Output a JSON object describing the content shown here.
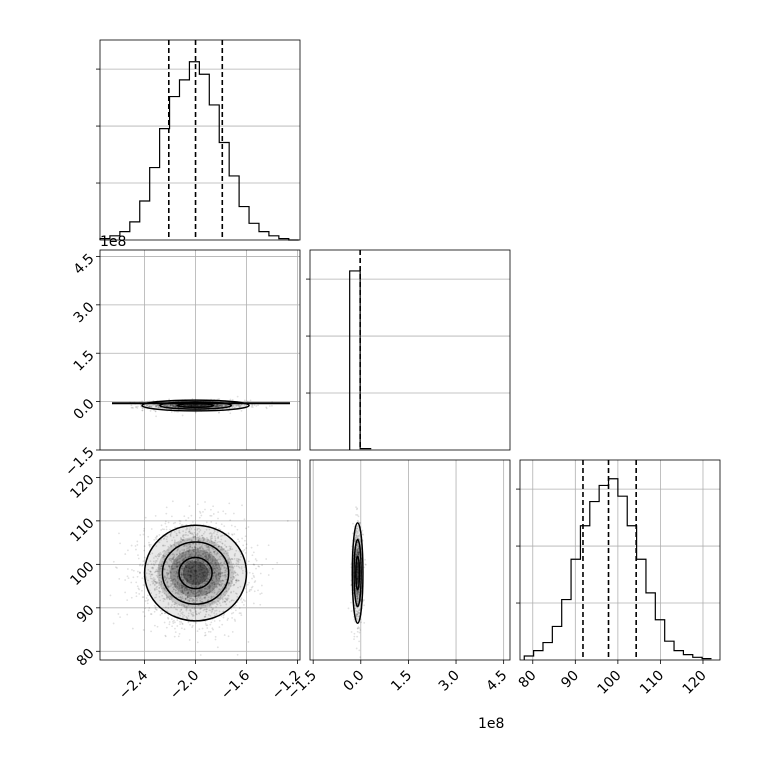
{
  "figure_type": "corner plot",
  "colors": {
    "line": "#000000",
    "grid": "#b0b0b0",
    "points": "#000000",
    "background": "#ffffff"
  },
  "chart_data": [
    {
      "panel": "hist-1",
      "type": "histogram",
      "x_range": [
        -2.75,
        -1.18
      ],
      "quantile_lines": [
        -2.21,
        -2.0,
        -1.79
      ],
      "bin_edges": [
        -2.75,
        -2.672,
        -2.594,
        -2.516,
        -2.438,
        -2.36,
        -2.282,
        -2.204,
        -2.126,
        -2.048,
        -1.97,
        -1.892,
        -1.814,
        -1.736,
        -1.658,
        -1.58,
        -1.502,
        -1.424,
        -1.346,
        -1.268,
        -1.19
      ],
      "counts": [
        1,
        3,
        6,
        13,
        28,
        52,
        80,
        103,
        115,
        128,
        119,
        97,
        70,
        46,
        24,
        12,
        6,
        3,
        1,
        0
      ],
      "grid": true
    },
    {
      "panel": "scatter-2-1",
      "type": "scatter+contour",
      "x_range": [
        -2.75,
        -1.18
      ],
      "y_range": [
        -1.5,
        4.7
      ],
      "y_ticks": [
        "−1.5",
        "0.0",
        "1.5",
        "3.0",
        "4.5"
      ],
      "y_scale_label": "1e8",
      "center": [
        -2.0,
        -0.12
      ],
      "grid": true
    },
    {
      "panel": "hist-2",
      "type": "histogram",
      "x_range": [
        -1.6,
        4.7
      ],
      "quantile_lines": [
        -0.02
      ],
      "bin_edges": [
        -0.35,
        -0.02,
        0.33
      ],
      "counts": [
        400,
        3
      ],
      "grid": true
    },
    {
      "panel": "scatter-3-1",
      "type": "scatter+contour",
      "x_range": [
        -2.75,
        -1.18
      ],
      "y_range": [
        78,
        124
      ],
      "x_ticks": [
        "−2.4",
        "−2.0",
        "−1.6",
        "−1.2"
      ],
      "y_ticks": [
        "80",
        "90",
        "100",
        "110",
        "120"
      ],
      "center": [
        -2.0,
        98
      ],
      "grid": true
    },
    {
      "panel": "scatter-3-2",
      "type": "scatter+contour",
      "x_range": [
        -1.6,
        4.7
      ],
      "y_range": [
        78,
        124
      ],
      "x_ticks": [
        "−1.5",
        "0.0",
        "1.5",
        "3.0",
        "4.5"
      ],
      "x_scale_label": "1e8",
      "center": [
        -0.1,
        98
      ],
      "grid": true
    },
    {
      "panel": "hist-3",
      "type": "histogram",
      "x_range": [
        77,
        124
      ],
      "x_ticks": [
        "80",
        "90",
        "100",
        "110",
        "120"
      ],
      "quantile_lines": [
        91.8,
        97.8,
        104.3
      ],
      "bin_edges": [
        78,
        80.2,
        82.4,
        84.6,
        86.8,
        89,
        91.2,
        93.4,
        95.6,
        97.8,
        100,
        102.2,
        104.4,
        106.6,
        108.8,
        111,
        113.2,
        115.4,
        117.6,
        119.8,
        122
      ],
      "counts": [
        3,
        7,
        13,
        25,
        45,
        75,
        100,
        118,
        130,
        135,
        122,
        100,
        75,
        50,
        30,
        14,
        7,
        4,
        2,
        1
      ],
      "grid": true
    }
  ],
  "labels": {
    "panel21_scale": "1e8",
    "bottom_scale": "1e8"
  }
}
